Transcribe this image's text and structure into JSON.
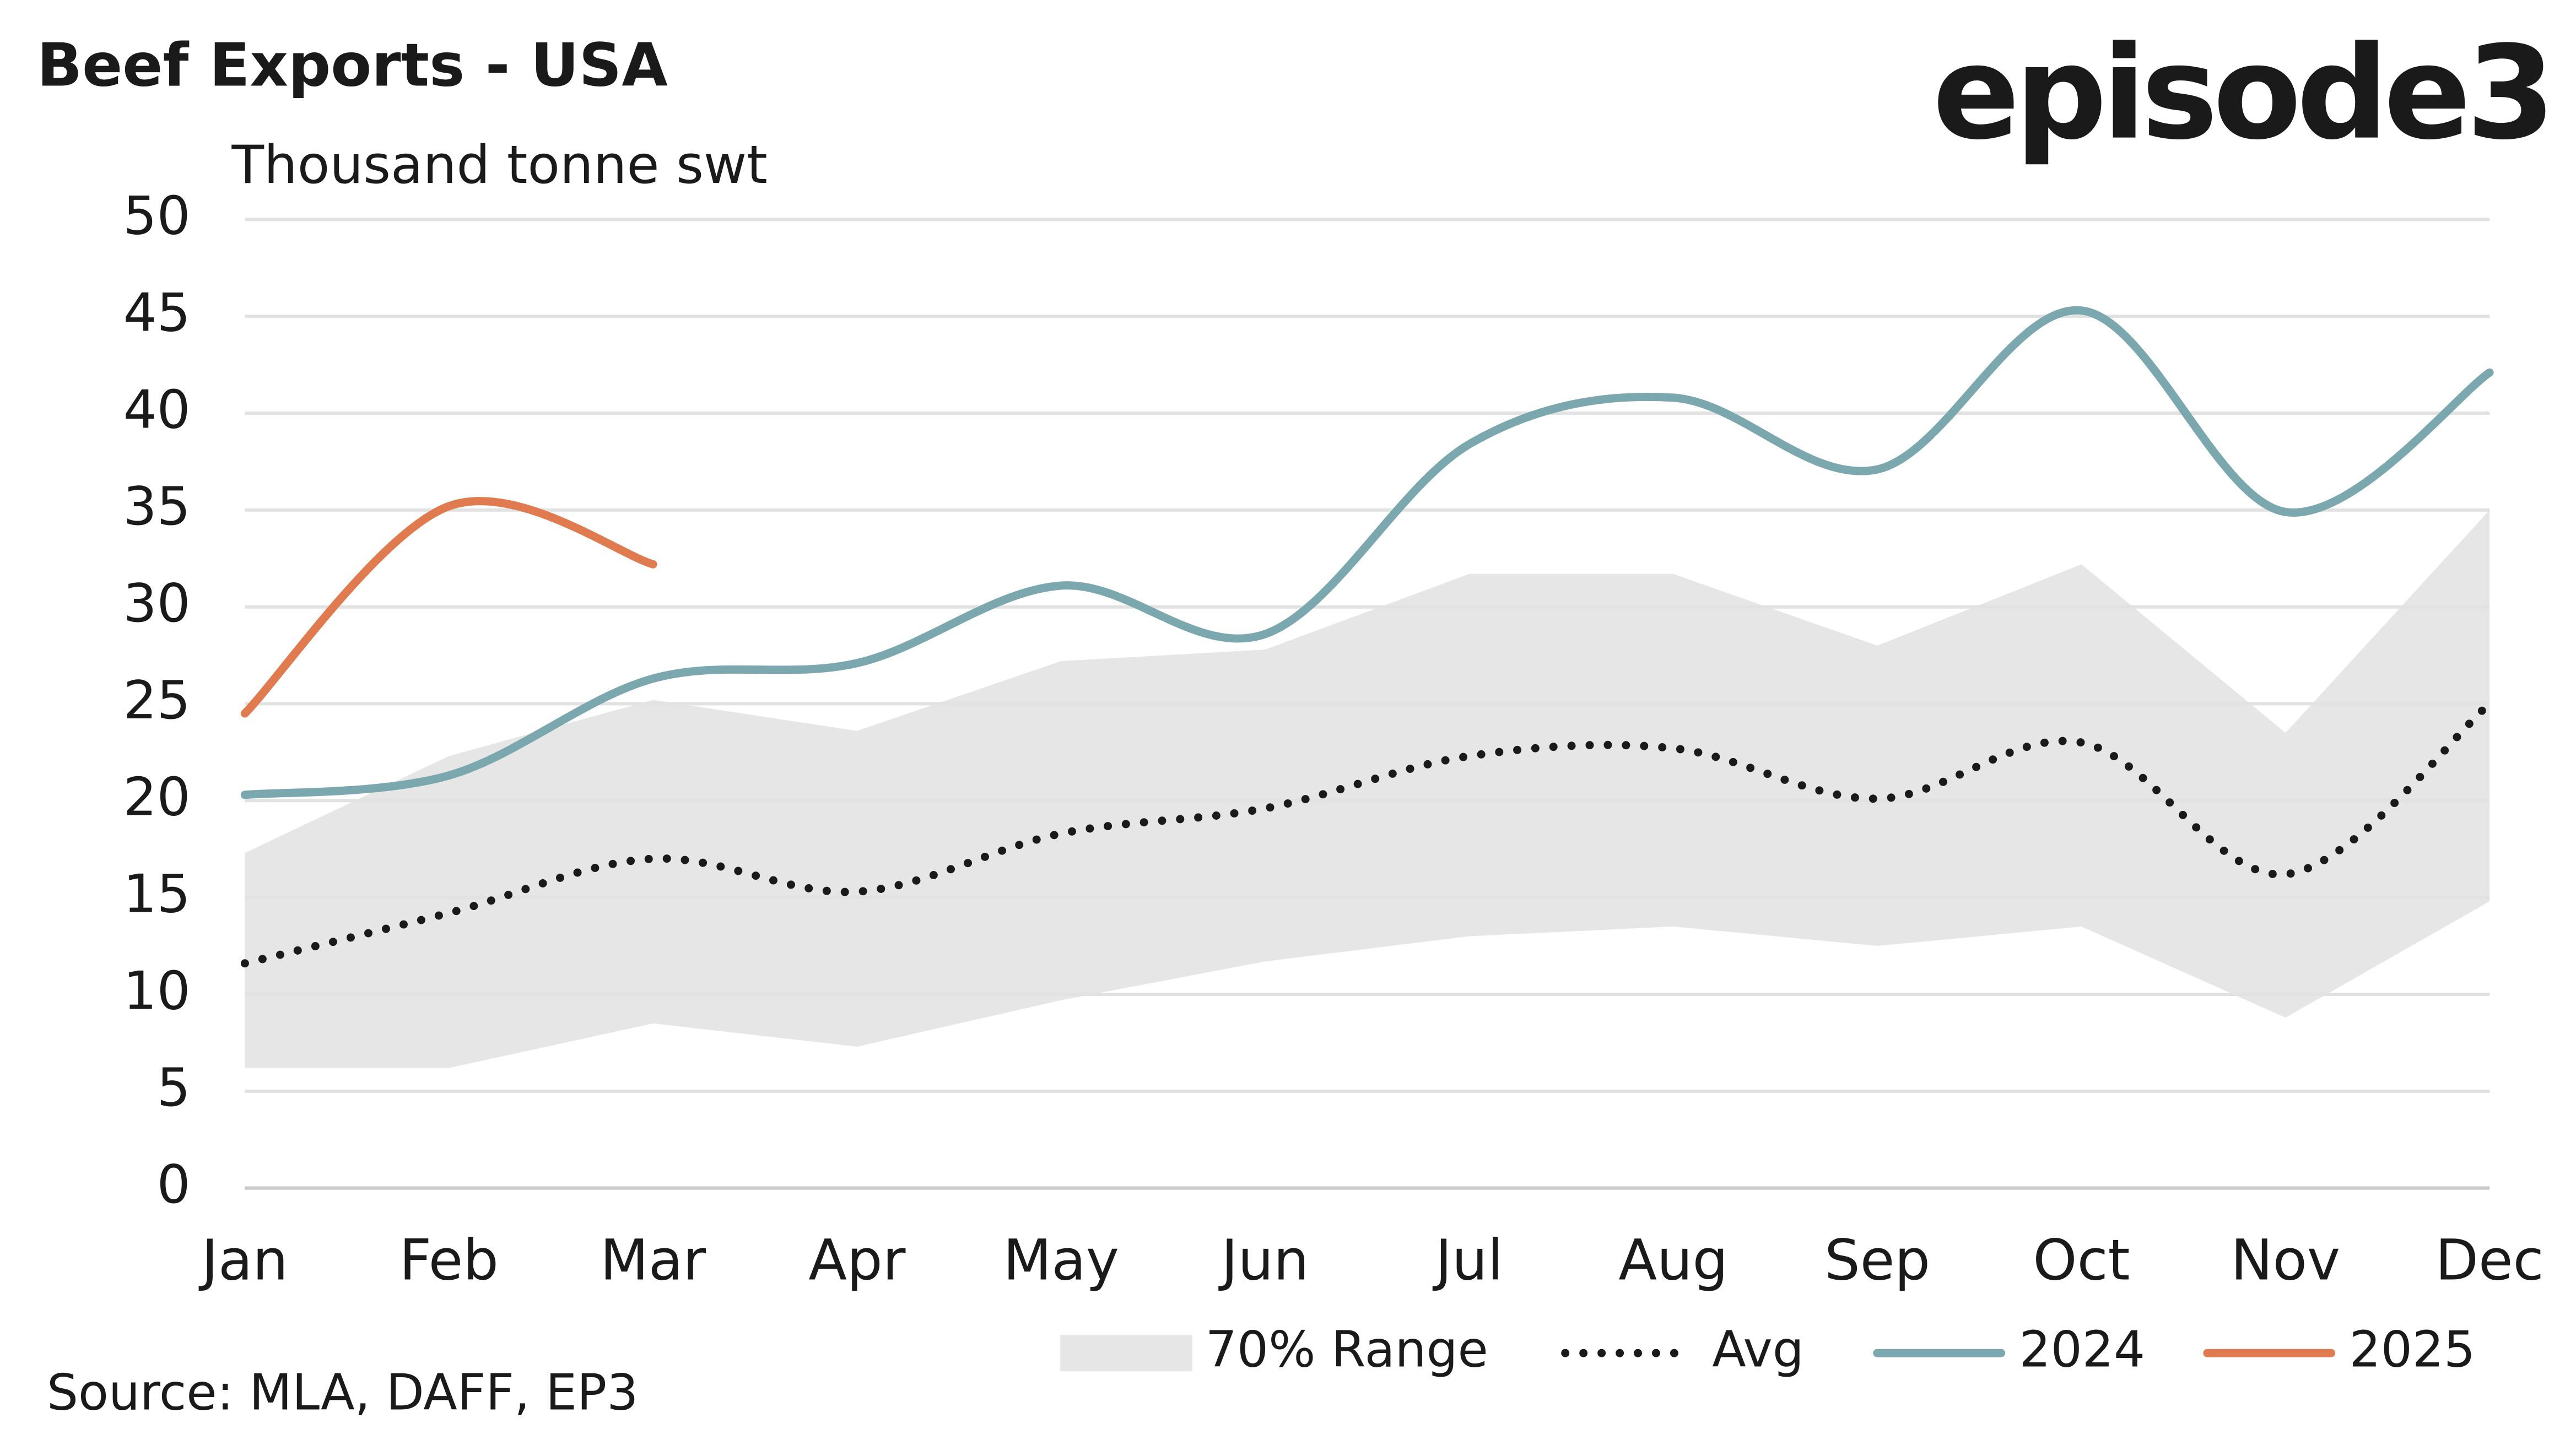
{
  "chart_data": {
    "type": "line",
    "title": "Beef Exports - USA",
    "subtitle": "Thousand tonne swt",
    "logo": "episode3",
    "source": "Source: MLA, DAFF, EP3",
    "categories": [
      "Jan",
      "Feb",
      "Mar",
      "Apr",
      "May",
      "Jun",
      "Jul",
      "Aug",
      "Sep",
      "Oct",
      "Nov",
      "Dec"
    ],
    "ylim": [
      0,
      50
    ],
    "yticks": [
      0,
      5,
      10,
      15,
      20,
      25,
      30,
      35,
      40,
      45,
      50
    ],
    "grid": true,
    "legend": "bottom",
    "range": {
      "name": "70% Range",
      "color": "#e6e6e6",
      "low": [
        6.2,
        6.2,
        8.5,
        7.3,
        9.7,
        11.7,
        13,
        13.5,
        12.5,
        13.5,
        8.8,
        14.8
      ],
      "high": [
        17.3,
        22.3,
        25.2,
        23.6,
        27.2,
        27.8,
        31.7,
        31.7,
        28,
        32.2,
        23.5,
        35
      ]
    },
    "series": [
      {
        "name": "Avg",
        "color": "#1a1a1a",
        "style": "dotted",
        "values": [
          11.6,
          14.2,
          17,
          15.3,
          18.3,
          19.6,
          22.3,
          22.7,
          20.1,
          23,
          16.2,
          25
        ]
      },
      {
        "name": "2024",
        "color": "#7ba7ae",
        "style": "solid",
        "values": [
          20.3,
          21.3,
          26.3,
          27.1,
          31.1,
          28.6,
          38.4,
          40.8,
          37.1,
          45.3,
          34.9,
          42.1
        ]
      },
      {
        "name": "2025",
        "color": "#e07b50",
        "style": "solid",
        "values": [
          24.5,
          35.2,
          32.2,
          null,
          null,
          null,
          null,
          null,
          null,
          null,
          null,
          null
        ]
      }
    ]
  }
}
